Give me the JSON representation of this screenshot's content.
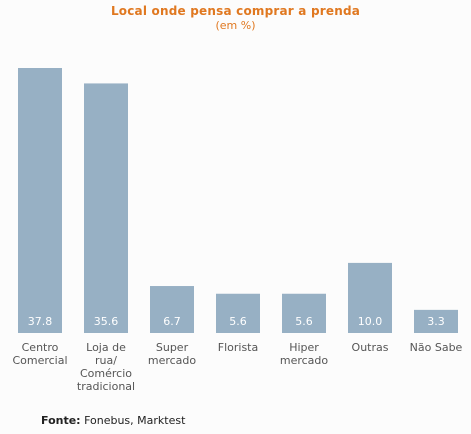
{
  "chart_data": {
    "type": "bar",
    "title": "Local onde pensa comprar a prenda",
    "subtitle": "(em %)",
    "categories": [
      [
        "Centro",
        "Comercial"
      ],
      [
        "Loja de",
        "rua/",
        "Comércio",
        "tradicional"
      ],
      [
        "Super",
        "mercado"
      ],
      [
        "Florista"
      ],
      [
        "Hiper",
        "mercado"
      ],
      [
        "Outras"
      ],
      [
        "Não Sabe"
      ]
    ],
    "values": [
      37.8,
      35.6,
      6.7,
      5.6,
      5.6,
      10.0,
      3.3
    ],
    "value_labels": [
      "37.8",
      "35.6",
      "6.7",
      "5.6",
      "5.6",
      "10.0",
      "3.3"
    ],
    "ylim": [
      0,
      37.8
    ],
    "grid": false,
    "legend": "none",
    "bar_color": "#97b0c4",
    "value_label_color": "#ffffff",
    "title_color": "#e07820"
  },
  "source": {
    "label": "Fonte:",
    "text": "Fonebus, Marktest"
  }
}
